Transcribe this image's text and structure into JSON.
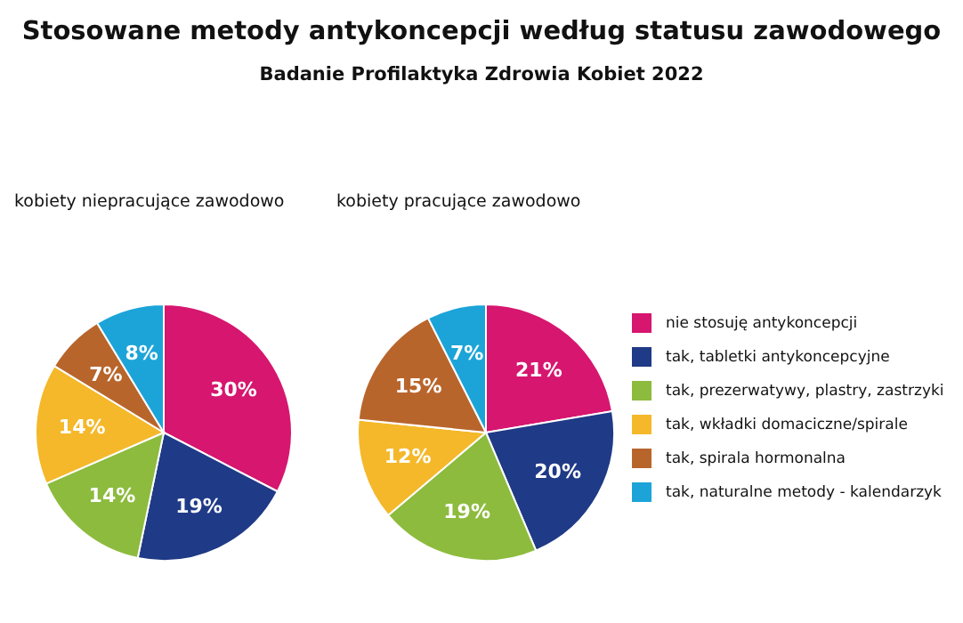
{
  "chart_data": {
    "type": "pie",
    "title": "Stosowane metody antykoncepcji według statusu zawodowego",
    "subtitle": "Badanie Profilaktyka Zdrowia Kobiet 2022",
    "categories": [
      "nie stosuję antykoncepcji",
      "tak, tabletki antykoncepcyjne",
      "tak, prezerwatywy, plastry, zastrzyki",
      "tak, wkładki domaciczne/spirale",
      "tak, spirala hormonalna",
      "tak, naturalne metody - kalendarzyk"
    ],
    "colors": [
      "#d6166f",
      "#1f3a86",
      "#8dbb3e",
      "#f4b82a",
      "#b8652c",
      "#1ca4d8"
    ],
    "series": [
      {
        "name": "kobiety niepracujące zawodowo",
        "values": [
          30,
          19,
          14,
          14,
          7,
          8
        ],
        "value_labels": [
          "30%",
          "19%",
          "14%",
          "14%",
          "7%",
          "8%"
        ]
      },
      {
        "name": "kobiety pracujące zawodowo",
        "values": [
          21,
          20,
          19,
          12,
          15,
          7
        ],
        "value_labels": [
          "21%",
          "20%",
          "19%",
          "12%",
          "15%",
          "7%"
        ]
      }
    ],
    "legend": "right"
  }
}
